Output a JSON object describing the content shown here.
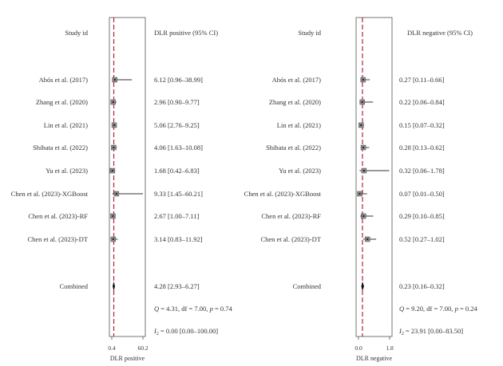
{
  "chart_data": [
    {
      "type": "forest",
      "header_label": "Study id",
      "header_ci": "DLR positive (95% CI)",
      "xlabel": "DLR positive",
      "x_ticks": [
        {
          "value": 0.4,
          "label": "0.4"
        },
        {
          "value": 60.2,
          "label": "60.2"
        }
      ],
      "xlim": [
        0.4,
        60.2
      ],
      "reference_line": 4.28,
      "studies": [
        {
          "name": "Abós et al. (2017)",
          "est": 6.12,
          "lo": 0.96,
          "hi": 38.99,
          "ci_text": "6.12 [0.96–38.99]"
        },
        {
          "name": "Zhang et al. (2020)",
          "est": 2.96,
          "lo": 0.9,
          "hi": 9.77,
          "ci_text": "2.96 [0.90–9.77]"
        },
        {
          "name": "Lin et al. (2021)",
          "est": 5.06,
          "lo": 2.76,
          "hi": 9.25,
          "ci_text": "5.06 [2.76–9.25]"
        },
        {
          "name": "Shibata et al. (2022)",
          "est": 4.06,
          "lo": 1.63,
          "hi": 10.08,
          "ci_text": "4.06 [1.63–10.08]"
        },
        {
          "name": "Yu et al. (2023)",
          "est": 1.68,
          "lo": 0.42,
          "hi": 6.83,
          "ci_text": "1.68 [0.42–6.83]"
        },
        {
          "name": "Chen et al. (2023)-XGBoost",
          "est": 9.33,
          "lo": 1.45,
          "hi": 60.21,
          "ci_text": "9.33 [1.45–60.21]"
        },
        {
          "name": "Chen et al. (2023)-RF",
          "est": 2.67,
          "lo": 1.0,
          "hi": 7.11,
          "ci_text": "2.67 [1.00–7.11]"
        },
        {
          "name": "Chen et al. (2023)-DT",
          "est": 3.14,
          "lo": 0.83,
          "hi": 11.92,
          "ci_text": "3.14 [0.83–11.92]"
        }
      ],
      "combined": {
        "name": "Combined",
        "est": 4.28,
        "lo": 2.93,
        "hi": 6.27,
        "ci_text": "4.28 [2.93–6.27]"
      },
      "heterogeneity": [
        {
          "symbol": "Q",
          "sub": "",
          "rest": " = 4.31, df = 7.00, ",
          "p_symbol": "p",
          "p_rest": " = 0.74"
        },
        {
          "symbol": "I",
          "sub": "2",
          "rest": " = 0.00 [0.00–100.00]",
          "p_symbol": "",
          "p_rest": ""
        }
      ]
    },
    {
      "type": "forest",
      "header_label": "Study id",
      "header_ci": "DLR negative (95% CI)",
      "xlabel": "DLR negative",
      "x_ticks": [
        {
          "value": 0.0,
          "label": "0.0"
        },
        {
          "value": 1.8,
          "label": "1.8"
        }
      ],
      "xlim": [
        0.0,
        1.8
      ],
      "reference_line": 0.23,
      "studies": [
        {
          "name": "Abós et al. (2017)",
          "est": 0.27,
          "lo": 0.11,
          "hi": 0.66,
          "ci_text": "0.27 [0.11–0.66]"
        },
        {
          "name": "Zhang et al. (2020)",
          "est": 0.22,
          "lo": 0.06,
          "hi": 0.84,
          "ci_text": "0.22 [0.06–0.84]"
        },
        {
          "name": "Lin et al. (2021)",
          "est": 0.15,
          "lo": 0.07,
          "hi": 0.32,
          "ci_text": "0.15 [0.07–0.32]"
        },
        {
          "name": "Shibata et al. (2022)",
          "est": 0.28,
          "lo": 0.13,
          "hi": 0.62,
          "ci_text": "0.28 [0.13–0.62]"
        },
        {
          "name": "Yu et al. (2023)",
          "est": 0.32,
          "lo": 0.06,
          "hi": 1.78,
          "ci_text": "0.32 [0.06–1.78]"
        },
        {
          "name": "Chen et al. (2023)-XGBoost",
          "est": 0.07,
          "lo": 0.01,
          "hi": 0.5,
          "ci_text": "0.07 [0.01–0.50]"
        },
        {
          "name": "Chen et al. (2023)-RF",
          "est": 0.29,
          "lo": 0.1,
          "hi": 0.85,
          "ci_text": "0.29 [0.10–0.85]"
        },
        {
          "name": "Chen et al. (2023)-DT",
          "est": 0.52,
          "lo": 0.27,
          "hi": 1.02,
          "ci_text": "0.52 [0.27–1.02]"
        }
      ],
      "combined": {
        "name": "Combined",
        "est": 0.23,
        "lo": 0.16,
        "hi": 0.32,
        "ci_text": "0.23 [0.16–0.32]"
      },
      "heterogeneity": [
        {
          "symbol": "Q",
          "sub": "",
          "rest": " = 9.20, df = 7.00, ",
          "p_symbol": "p",
          "p_rest": " = 0.24"
        },
        {
          "symbol": "I",
          "sub": "2",
          "rest": " = 23.91 [0.00–83.50]",
          "p_symbol": "",
          "p_rest": ""
        }
      ]
    }
  ],
  "colors": {
    "reference_line": "#b5203a",
    "ci_line": "#333333",
    "marker_box": "#8a8a8a",
    "diamond": "#111111",
    "text": "#333333",
    "frame": "#555555"
  }
}
